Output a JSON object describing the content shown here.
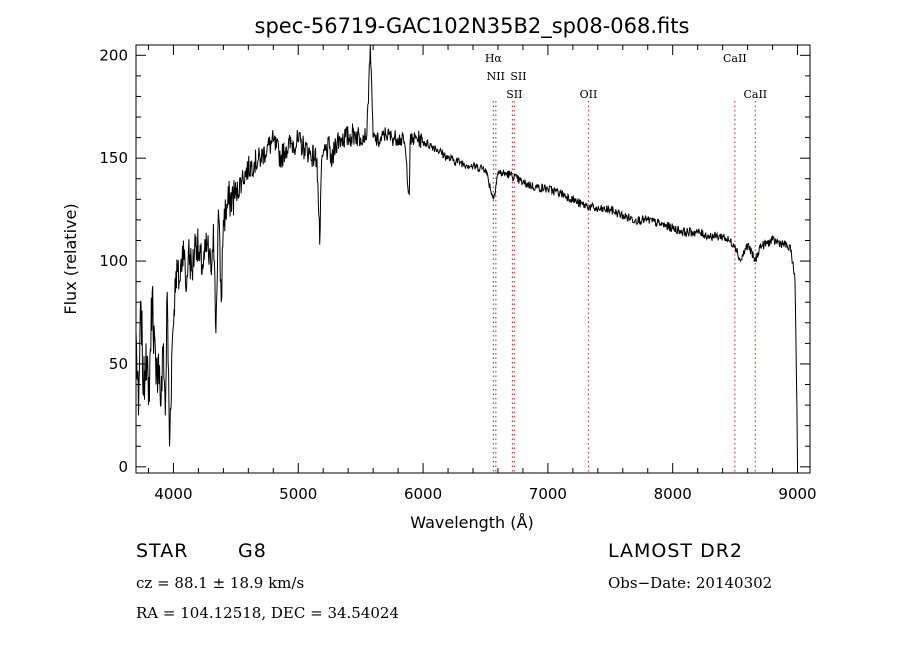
{
  "chart_data": {
    "type": "line",
    "title": "spec-56719-GAC102N35B2_sp08-068.fits",
    "xlabel": "Wavelength (Å)",
    "ylabel": "Flux (relative)",
    "xlim": [
      3700,
      9100
    ],
    "ylim": [
      -3,
      205
    ],
    "x_ticks": [
      4000,
      5000,
      6000,
      7000,
      8000,
      9000
    ],
    "y_ticks": [
      0,
      50,
      100,
      150,
      200
    ],
    "grid": false,
    "line_color": "#000000",
    "marker_color": "#d04040",
    "series": [
      {
        "x": [
          3700,
          3720,
          3740,
          3760,
          3780,
          3800,
          3830,
          3860,
          3880,
          3900,
          3920,
          3935,
          3950,
          3968,
          3990,
          4020,
          4050,
          4080,
          4101,
          4120,
          4150,
          4180,
          4210,
          4240,
          4270,
          4300,
          4320,
          4340,
          4360,
          4383,
          4400,
          4450,
          4500,
          4550,
          4600,
          4650,
          4700,
          4750,
          4800,
          4861,
          4900,
          4950,
          5000,
          5050,
          5100,
          5150,
          5172,
          5183,
          5200,
          5250,
          5270,
          5300,
          5350,
          5400,
          5450,
          5500,
          5550,
          5577,
          5600,
          5650,
          5700,
          5750,
          5800,
          5850,
          5890,
          5896,
          5950,
          6000,
          6100,
          6200,
          6300,
          6400,
          6500,
          6563,
          6600,
          6700,
          6800,
          6900,
          7000,
          7100,
          7200,
          7250,
          7300,
          7400,
          7500,
          7600,
          7700,
          7800,
          7900,
          8000,
          8100,
          8200,
          8300,
          8400,
          8498,
          8542,
          8600,
          8662,
          8700,
          8800,
          8900,
          8950,
          8980,
          8995,
          9000
        ],
        "y": [
          65,
          25,
          80,
          35,
          60,
          30,
          85,
          40,
          55,
          30,
          60,
          25,
          85,
          10,
          60,
          95,
          90,
          110,
          85,
          105,
          95,
          112,
          100,
          98,
          108,
          95,
          118,
          65,
          125,
          80,
          120,
          130,
          132,
          140,
          145,
          148,
          150,
          155,
          158,
          150,
          155,
          157,
          158,
          155,
          152,
          150,
          108,
          140,
          152,
          155,
          147,
          158,
          160,
          160,
          162,
          160,
          162,
          205,
          160,
          158,
          162,
          160,
          160,
          158,
          132,
          158,
          160,
          158,
          155,
          150,
          148,
          146,
          145,
          130,
          143,
          142,
          138,
          136,
          135,
          133,
          130,
          128,
          127,
          125,
          125,
          122,
          120,
          120,
          118,
          116,
          114,
          114,
          112,
          112,
          108,
          100,
          108,
          100,
          107,
          110,
          108,
          105,
          90,
          30,
          0
        ]
      }
    ],
    "lines": [
      {
        "label": "Hα",
        "x": 6563
      },
      {
        "label": "NII",
        "x": 6583
      },
      {
        "label": "SII",
        "x": 6716
      },
      {
        "label": "SII",
        "x": 6731
      },
      {
        "label": "OII",
        "x": 7325
      },
      {
        "label": "CaII",
        "x": 8498
      },
      {
        "label": "CaII",
        "x": 8662
      }
    ]
  },
  "info": {
    "object_type": "STAR",
    "subclass": "G8",
    "survey": "LAMOST DR2",
    "cz_text": "cz = 88.1 ± 18.9 km/s",
    "obs_date_text": "Obs−Date: 20140302",
    "coords_text": "RA = 104.12518, DEC =  34.54024"
  }
}
